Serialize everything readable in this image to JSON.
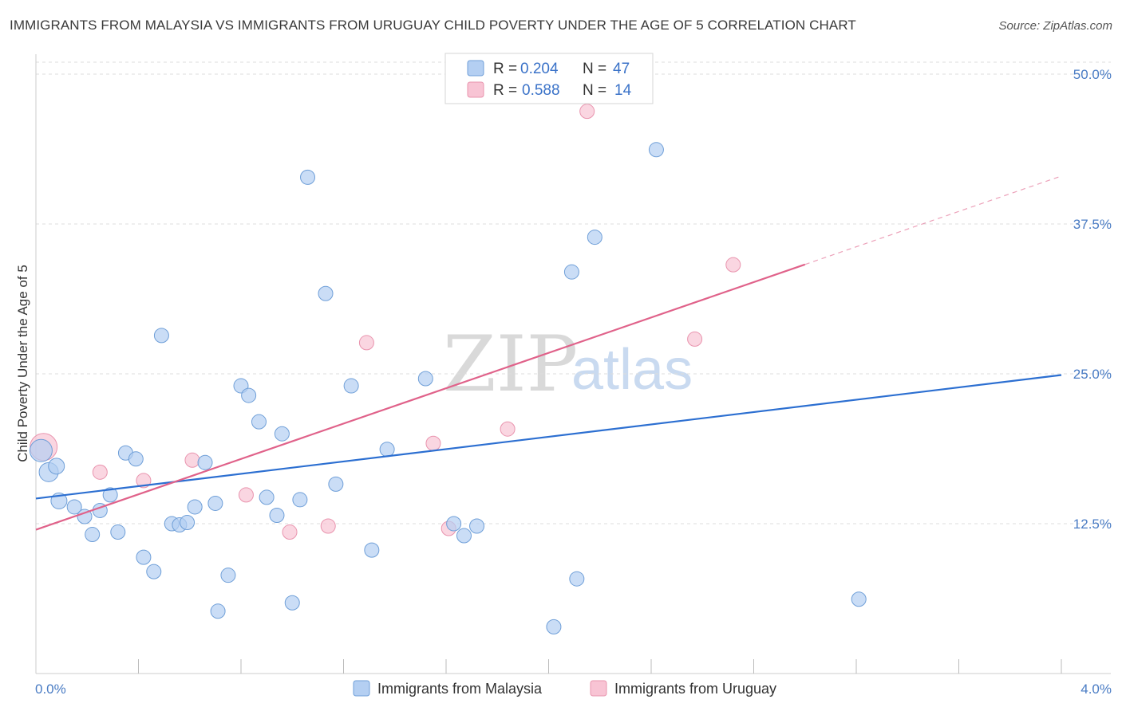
{
  "title": "IMMIGRANTS FROM MALAYSIA VS IMMIGRANTS FROM URUGUAY CHILD POVERTY UNDER THE AGE OF 5 CORRELATION CHART",
  "source": "Source: ZipAtlas.com",
  "watermark": {
    "zip": "ZIP",
    "atlas": "atlas"
  },
  "colors": {
    "malaysia_fill": "#b4cff2",
    "malaysia_stroke": "#6f9fd8",
    "malaysia_line": "#2c6fd1",
    "uruguay_fill": "#f8c4d4",
    "uruguay_stroke": "#e994ae",
    "uruguay_line": "#e0628a",
    "grid": "#dddddd",
    "tick_text": "#4a7cc4"
  },
  "legend": {
    "rows": [
      {
        "r_label": "R =",
        "r_value": "0.204",
        "n_label": "N =",
        "n_value": "47"
      },
      {
        "r_label": "R =",
        "r_value": "0.588",
        "n_label": "N =",
        "n_value": "14"
      }
    ]
  },
  "chart_data": {
    "type": "scatter",
    "title": "IMMIGRANTS FROM MALAYSIA VS IMMIGRANTS FROM URUGUAY CHILD POVERTY UNDER THE AGE OF 5 CORRELATION CHART",
    "xlabel": "",
    "ylabel": "Child Poverty Under the Age of 5",
    "xlim": [
      0,
      4
    ],
    "ylim": [
      0,
      51
    ],
    "x_tick_labels": [
      "0.0%",
      "4.0%"
    ],
    "y_ticks": [
      12.5,
      25.0,
      37.5,
      50.0
    ],
    "y_tick_labels": [
      "12.5%",
      "25.0%",
      "37.5%",
      "50.0%"
    ],
    "legend_position": "top-center",
    "series": [
      {
        "name": "Immigrants from Malaysia",
        "R": 0.204,
        "N": 47,
        "trend": {
          "x0": 0.0,
          "y0": 14.6,
          "x1": 4.0,
          "y1": 24.9,
          "dashed_from_x": null
        },
        "points": [
          {
            "x": 0.02,
            "y": 18.6,
            "s": 14
          },
          {
            "x": 0.05,
            "y": 16.8,
            "s": 12
          },
          {
            "x": 0.08,
            "y": 17.3,
            "s": 10
          },
          {
            "x": 0.09,
            "y": 14.4,
            "s": 10
          },
          {
            "x": 0.15,
            "y": 13.9,
            "s": 9
          },
          {
            "x": 0.19,
            "y": 13.1,
            "s": 9
          },
          {
            "x": 0.22,
            "y": 11.6,
            "s": 9
          },
          {
            "x": 0.25,
            "y": 13.6,
            "s": 9
          },
          {
            "x": 0.29,
            "y": 14.9,
            "s": 9
          },
          {
            "x": 0.32,
            "y": 11.8,
            "s": 9
          },
          {
            "x": 0.35,
            "y": 18.4,
            "s": 9
          },
          {
            "x": 0.39,
            "y": 17.9,
            "s": 9
          },
          {
            "x": 0.42,
            "y": 9.7,
            "s": 9
          },
          {
            "x": 0.46,
            "y": 8.5,
            "s": 9
          },
          {
            "x": 0.49,
            "y": 28.2,
            "s": 9
          },
          {
            "x": 0.53,
            "y": 12.5,
            "s": 9
          },
          {
            "x": 0.56,
            "y": 12.4,
            "s": 9
          },
          {
            "x": 0.59,
            "y": 12.6,
            "s": 9
          },
          {
            "x": 0.62,
            "y": 13.9,
            "s": 9
          },
          {
            "x": 0.66,
            "y": 17.6,
            "s": 9
          },
          {
            "x": 0.7,
            "y": 14.2,
            "s": 9
          },
          {
            "x": 0.71,
            "y": 5.2,
            "s": 9
          },
          {
            "x": 0.75,
            "y": 8.2,
            "s": 9
          },
          {
            "x": 0.8,
            "y": 24.0,
            "s": 9
          },
          {
            "x": 0.83,
            "y": 23.2,
            "s": 9
          },
          {
            "x": 0.87,
            "y": 21.0,
            "s": 9
          },
          {
            "x": 0.9,
            "y": 14.7,
            "s": 9
          },
          {
            "x": 0.94,
            "y": 13.2,
            "s": 9
          },
          {
            "x": 0.96,
            "y": 20.0,
            "s": 9
          },
          {
            "x": 1.0,
            "y": 5.9,
            "s": 9
          },
          {
            "x": 1.03,
            "y": 14.5,
            "s": 9
          },
          {
            "x": 1.06,
            "y": 41.4,
            "s": 9
          },
          {
            "x": 1.13,
            "y": 31.7,
            "s": 9
          },
          {
            "x": 1.17,
            "y": 15.8,
            "s": 9
          },
          {
            "x": 1.23,
            "y": 24.0,
            "s": 9
          },
          {
            "x": 1.31,
            "y": 10.3,
            "s": 9
          },
          {
            "x": 1.37,
            "y": 18.7,
            "s": 9
          },
          {
            "x": 1.52,
            "y": 24.6,
            "s": 9
          },
          {
            "x": 1.63,
            "y": 12.5,
            "s": 9
          },
          {
            "x": 1.67,
            "y": 11.5,
            "s": 9
          },
          {
            "x": 1.72,
            "y": 12.3,
            "s": 9
          },
          {
            "x": 2.02,
            "y": 3.9,
            "s": 9
          },
          {
            "x": 2.11,
            "y": 7.9,
            "s": 9
          },
          {
            "x": 2.09,
            "y": 33.5,
            "s": 9
          },
          {
            "x": 2.18,
            "y": 36.4,
            "s": 9
          },
          {
            "x": 2.42,
            "y": 43.7,
            "s": 9
          },
          {
            "x": 3.21,
            "y": 6.2,
            "s": 9
          }
        ]
      },
      {
        "name": "Immigrants from Uruguay",
        "R": 0.588,
        "N": 14,
        "trend": {
          "x0": 0.0,
          "y0": 12.0,
          "x1": 4.0,
          "y1": 41.5,
          "dashed_from_x": 3.0
        },
        "points": [
          {
            "x": 0.03,
            "y": 18.9,
            "s": 17
          },
          {
            "x": 0.25,
            "y": 16.8,
            "s": 9
          },
          {
            "x": 0.42,
            "y": 16.1,
            "s": 9
          },
          {
            "x": 0.61,
            "y": 17.8,
            "s": 9
          },
          {
            "x": 0.82,
            "y": 14.9,
            "s": 9
          },
          {
            "x": 0.99,
            "y": 11.8,
            "s": 9
          },
          {
            "x": 1.14,
            "y": 12.3,
            "s": 9
          },
          {
            "x": 1.29,
            "y": 27.6,
            "s": 9
          },
          {
            "x": 1.55,
            "y": 19.2,
            "s": 9
          },
          {
            "x": 1.61,
            "y": 12.1,
            "s": 9
          },
          {
            "x": 1.84,
            "y": 20.4,
            "s": 9
          },
          {
            "x": 2.15,
            "y": 46.9,
            "s": 9
          },
          {
            "x": 2.57,
            "y": 27.9,
            "s": 9
          },
          {
            "x": 2.72,
            "y": 34.1,
            "s": 9
          }
        ]
      }
    ]
  }
}
